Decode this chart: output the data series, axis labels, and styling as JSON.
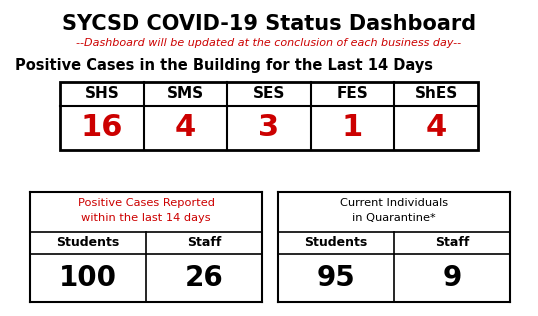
{
  "title": "SYCSD COVID-19 Status Dashboard",
  "subtitle": "--Dashboard will be updated at the conclusion of each business day--",
  "subtitle_color": "#cc0000",
  "section1_title": "Positive Cases in the Building for the Last 14 Days",
  "schools": [
    "SHS",
    "SMS",
    "SES",
    "FES",
    "ShES"
  ],
  "school_values": [
    "16",
    "4",
    "3",
    "1",
    "4"
  ],
  "value_color": "#cc0000",
  "header_bg": "#b8cce4",
  "table_border": "#000000",
  "box1_title_line1": "Positive Cases Reported",
  "box1_title_line2": "within the last 14 days",
  "box1_title_color": "#cc0000",
  "box1_col1_label": "Students",
  "box1_col2_label": "Staff",
  "box1_col1_value": "100",
  "box1_col2_value": "26",
  "box2_title_line1": "Current Individuals",
  "box2_title_line2": "in Quarantine*",
  "box2_title_color": "#000000",
  "box2_col1_label": "Students",
  "box2_col2_label": "Staff",
  "box2_col1_value": "95",
  "box2_col2_value": "9",
  "bg_color": "#ffffff",
  "text_color": "#000000",
  "fig_width": 5.38,
  "fig_height": 3.16,
  "dpi": 100
}
